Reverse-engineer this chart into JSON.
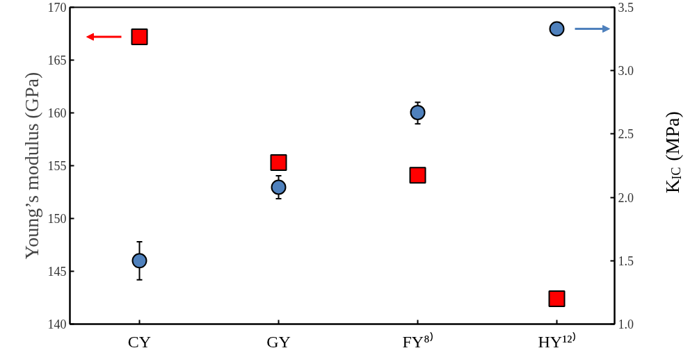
{
  "chart_data": {
    "type": "scatter",
    "categories": [
      "CY",
      "GY",
      "FY⁸⁾",
      "HY¹²⁾"
    ],
    "ylabel": "Young’s modulus (GPa)",
    "y2label": "K$_{IC}$ (MPa)",
    "ylim": [
      140,
      170
    ],
    "yticks": [
      140,
      145,
      150,
      155,
      160,
      165,
      170
    ],
    "y2lim": [
      1.0,
      3.5
    ],
    "y2ticks": [
      {
        "value": 1.0,
        "label": "1.0"
      },
      {
        "value": 1.5,
        "label": "1.5"
      },
      {
        "value": 2.0,
        "label": "2.0"
      },
      {
        "value": 2.5,
        "label": "2.5"
      },
      {
        "value": 3.0,
        "label": "3.0"
      },
      {
        "value": 3.5,
        "label": "3.5"
      }
    ],
    "grid": false,
    "series": [
      {
        "color": "#ff0000",
        "marker": "square",
        "values": [
          167.2,
          155.3,
          154.1,
          142.4
        ]
      },
      {
        "color": "#4f81bd",
        "marker": "circle",
        "axis": "y2",
        "values": [
          1.5,
          2.08,
          2.67,
          3.33
        ],
        "errors": [
          [
            1.35,
            1.65
          ],
          [
            1.99,
            2.17
          ],
          [
            2.58,
            2.75
          ],
          null
        ]
      }
    ]
  }
}
